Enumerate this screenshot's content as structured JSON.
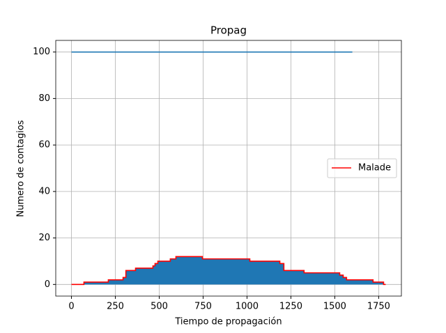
{
  "chart_data": {
    "type": "line",
    "title": "Propag",
    "x_label": "Tiempo de propagación",
    "y_label": "Numero de contagios",
    "series": [
      {
        "color": "#1f77b4",
        "x": [
          0,
          1600
        ],
        "values": [
          100,
          100
        ]
      },
      {
        "name": "Malade",
        "color": "red",
        "fill": "#1f77b4",
        "x": [
          0,
          71,
          71,
          210,
          210,
          294,
          294,
          310,
          310,
          365,
          365,
          464,
          464,
          476,
          476,
          492,
          492,
          563,
          563,
          595,
          595,
          746,
          746,
          1016,
          1016,
          1187,
          1187,
          1210,
          1210,
          1325,
          1325,
          1528,
          1528,
          1548,
          1548,
          1567,
          1567,
          1718,
          1718,
          1778,
          1778,
          1790
        ],
        "values": [
          0,
          0,
          1,
          1,
          2,
          2,
          3,
          3,
          6,
          6,
          7,
          7,
          8,
          8,
          9,
          9,
          10,
          10,
          11,
          11,
          12,
          12,
          11,
          11,
          10,
          10,
          9,
          9,
          6,
          6,
          5,
          5,
          4,
          4,
          3,
          3,
          2,
          2,
          1,
          1,
          0,
          0
        ]
      }
    ],
    "xlim": [
      -89.5,
      1879.5
    ],
    "xticks": [
      0,
      250,
      500,
      750,
      1000,
      1250,
      1500,
      1750
    ],
    "ylim": [
      -5,
      105
    ],
    "yticks": [
      0,
      20,
      40,
      60,
      80,
      100
    ],
    "grid": true,
    "legend": "center right"
  }
}
